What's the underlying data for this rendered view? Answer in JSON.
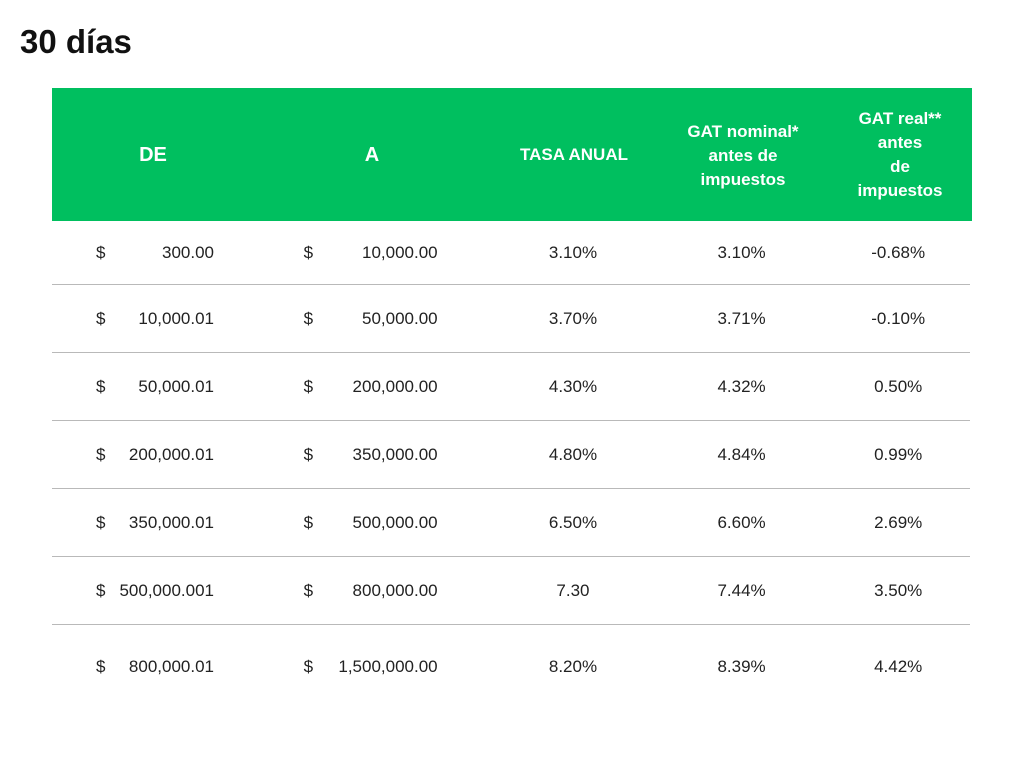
{
  "title": "30 días",
  "colors": {
    "header_bg": "#00bf5f",
    "header_text": "#ffffff",
    "row_divider": "#b9b9b9"
  },
  "table": {
    "headers": [
      "DE",
      "A",
      "TASA ANUAL",
      "GAT nominal*\nantes de\nimpuestos",
      "GAT real**\nantes\nde\nimpuestos"
    ],
    "rows": [
      {
        "de_cur": "$",
        "de_amt": "300.00",
        "a_cur": "$",
        "a_amt": "10,000.00",
        "tasa": "3.10%",
        "gat_nominal": "3.10%",
        "gat_real": "-0.68%"
      },
      {
        "de_cur": "$",
        "de_amt": "10,000.01",
        "a_cur": "$",
        "a_amt": "50,000.00",
        "tasa": "3.70%",
        "gat_nominal": "3.71%",
        "gat_real": "-0.10%"
      },
      {
        "de_cur": "$",
        "de_amt": "50,000.01",
        "a_cur": "$",
        "a_amt": "200,000.00",
        "tasa": "4.30%",
        "gat_nominal": "4.32%",
        "gat_real": "0.50%"
      },
      {
        "de_cur": "$",
        "de_amt": "200,000.01",
        "a_cur": "$",
        "a_amt": "350,000.00",
        "tasa": "4.80%",
        "gat_nominal": "4.84%",
        "gat_real": "0.99%"
      },
      {
        "de_cur": "$",
        "de_amt": "350,000.01",
        "a_cur": "$",
        "a_amt": "500,000.00",
        "tasa": "6.50%",
        "gat_nominal": "6.60%",
        "gat_real": "2.69%"
      },
      {
        "de_cur": "$",
        "de_amt": "500,000.001",
        "a_cur": "$",
        "a_amt": "800,000.00",
        "tasa": "7.30",
        "gat_nominal": "7.44%",
        "gat_real": "3.50%"
      },
      {
        "de_cur": "$",
        "de_amt": "800,000.01",
        "a_cur": "$",
        "a_amt": "1,500,000.00",
        "tasa": "8.20%",
        "gat_nominal": "8.39%",
        "gat_real": "4.42%"
      }
    ]
  }
}
